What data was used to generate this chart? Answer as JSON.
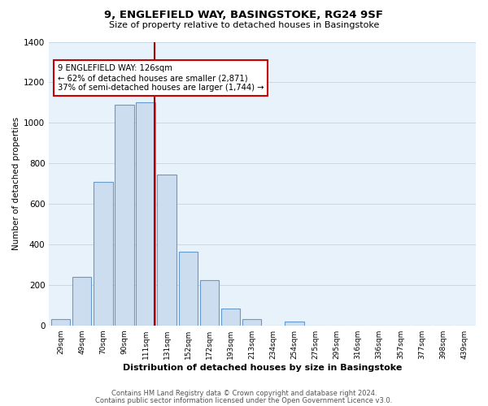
{
  "title": "9, ENGLEFIELD WAY, BASINGSTOKE, RG24 9SF",
  "subtitle": "Size of property relative to detached houses in Basingstoke",
  "xlabel": "Distribution of detached houses by size in Basingstoke",
  "ylabel": "Number of detached properties",
  "bar_labels": [
    "29sqm",
    "49sqm",
    "70sqm",
    "90sqm",
    "111sqm",
    "131sqm",
    "152sqm",
    "172sqm",
    "193sqm",
    "213sqm",
    "234sqm",
    "254sqm",
    "275sqm",
    "295sqm",
    "316sqm",
    "336sqm",
    "357sqm",
    "377sqm",
    "398sqm",
    "439sqm"
  ],
  "bar_values": [
    30,
    240,
    710,
    1090,
    1100,
    745,
    365,
    225,
    85,
    30,
    0,
    20,
    0,
    0,
    0,
    0,
    0,
    0,
    0,
    0
  ],
  "bar_color": "#ccddf0",
  "bar_edge_color": "#6699cc",
  "highlight_line_color": "#aa0000",
  "annotation_title": "9 ENGLEFIELD WAY: 126sqm",
  "annotation_line1": "← 62% of detached houses are smaller (2,871)",
  "annotation_line2": "37% of semi-detached houses are larger (1,744) →",
  "annotation_box_color": "#ffffff",
  "annotation_box_edge": "#cc0000",
  "ylim": [
    0,
    1400
  ],
  "yticks": [
    0,
    200,
    400,
    600,
    800,
    1000,
    1200,
    1400
  ],
  "footer1": "Contains HM Land Registry data © Crown copyright and database right 2024.",
  "footer2": "Contains public sector information licensed under the Open Government Licence v3.0.",
  "bg_color": "#ffffff",
  "plot_bg_color": "#e8f2fa",
  "grid_color": "#c8d8e8"
}
